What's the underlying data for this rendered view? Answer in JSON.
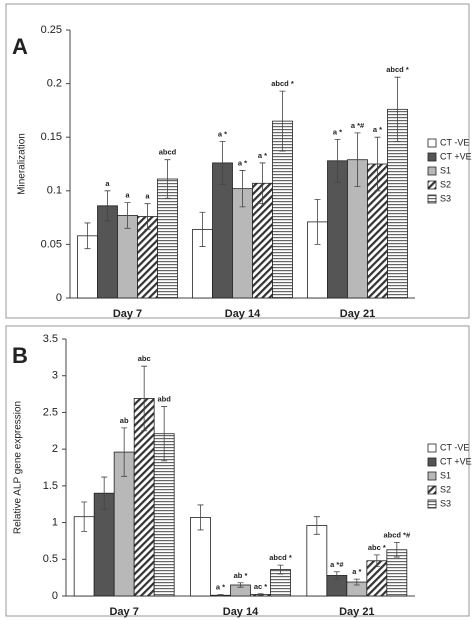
{
  "chart_data": [
    {
      "type": "bar",
      "panel": "A",
      "y_label": "Mineralization",
      "categories": [
        "Day 7",
        "Day 14",
        "Day 21"
      ],
      "ylim": [
        0,
        0.25
      ],
      "yticks": [
        0,
        0.05,
        0.1,
        0.15,
        0.2,
        0.25
      ],
      "series": [
        {
          "name": "CT -VE",
          "color": "#ffffff",
          "pattern": "solid",
          "values": [
            0.058,
            0.064,
            0.071
          ],
          "errors": [
            0.012,
            0.016,
            0.021
          ],
          "labels": [
            null,
            null,
            null
          ]
        },
        {
          "name": "CT +VE",
          "color": "#555555",
          "pattern": "solid",
          "values": [
            0.086,
            0.126,
            0.128
          ],
          "errors": [
            0.014,
            0.02,
            0.02
          ],
          "labels": [
            "a",
            "a *",
            "a *"
          ]
        },
        {
          "name": "S1",
          "color": "#b8b8b8",
          "pattern": "solid",
          "values": [
            0.077,
            0.102,
            0.129
          ],
          "errors": [
            0.012,
            0.017,
            0.025
          ],
          "labels": [
            "a",
            "a *",
            "a *#"
          ]
        },
        {
          "name": "S2",
          "color": "#333333",
          "pattern": "diagonal",
          "values": [
            0.076,
            0.107,
            0.125
          ],
          "errors": [
            0.012,
            0.019,
            0.025
          ],
          "labels": [
            "a",
            "a *",
            "a *"
          ]
        },
        {
          "name": "S3",
          "color": "#666666",
          "pattern": "horizontal",
          "values": [
            0.111,
            0.165,
            0.176
          ],
          "errors": [
            0.018,
            0.028,
            0.03
          ],
          "labels": [
            "abcd",
            "abcd *",
            "abcd *"
          ]
        }
      ]
    },
    {
      "type": "bar",
      "panel": "B",
      "y_label": "Relative ALP gene expression",
      "categories": [
        "Day 7",
        "Day 14",
        "Day 21"
      ],
      "ylim": [
        0,
        3.5
      ],
      "yticks": [
        0,
        0.5,
        1,
        1.5,
        2,
        2.5,
        3,
        3.5
      ],
      "series": [
        {
          "name": "CT -VE",
          "color": "#ffffff",
          "pattern": "solid",
          "values": [
            1.08,
            1.07,
            0.96
          ],
          "errors": [
            0.2,
            0.17,
            0.12
          ],
          "labels": [
            null,
            null,
            null
          ]
        },
        {
          "name": "CT +VE",
          "color": "#555555",
          "pattern": "solid",
          "values": [
            1.4,
            0.01,
            0.28
          ],
          "errors": [
            0.22,
            0.01,
            0.05
          ],
          "labels": [
            null,
            "a *",
            "a *#"
          ]
        },
        {
          "name": "S1",
          "color": "#b8b8b8",
          "pattern": "solid",
          "values": [
            1.96,
            0.15,
            0.19
          ],
          "errors": [
            0.33,
            0.03,
            0.04
          ],
          "labels": [
            "ab",
            "ab *",
            "a *"
          ]
        },
        {
          "name": "S2",
          "color": "#333333",
          "pattern": "diagonal",
          "values": [
            2.69,
            0.02,
            0.48
          ],
          "errors": [
            0.44,
            0.01,
            0.08
          ],
          "labels": [
            "abc",
            "ac *",
            "abc *"
          ]
        },
        {
          "name": "S3",
          "color": "#666666",
          "pattern": "horizontal",
          "values": [
            2.21,
            0.36,
            0.63
          ],
          "errors": [
            0.37,
            0.06,
            0.1
          ],
          "labels": [
            "abd",
            "abcd *",
            "abcd *#"
          ]
        }
      ]
    }
  ]
}
